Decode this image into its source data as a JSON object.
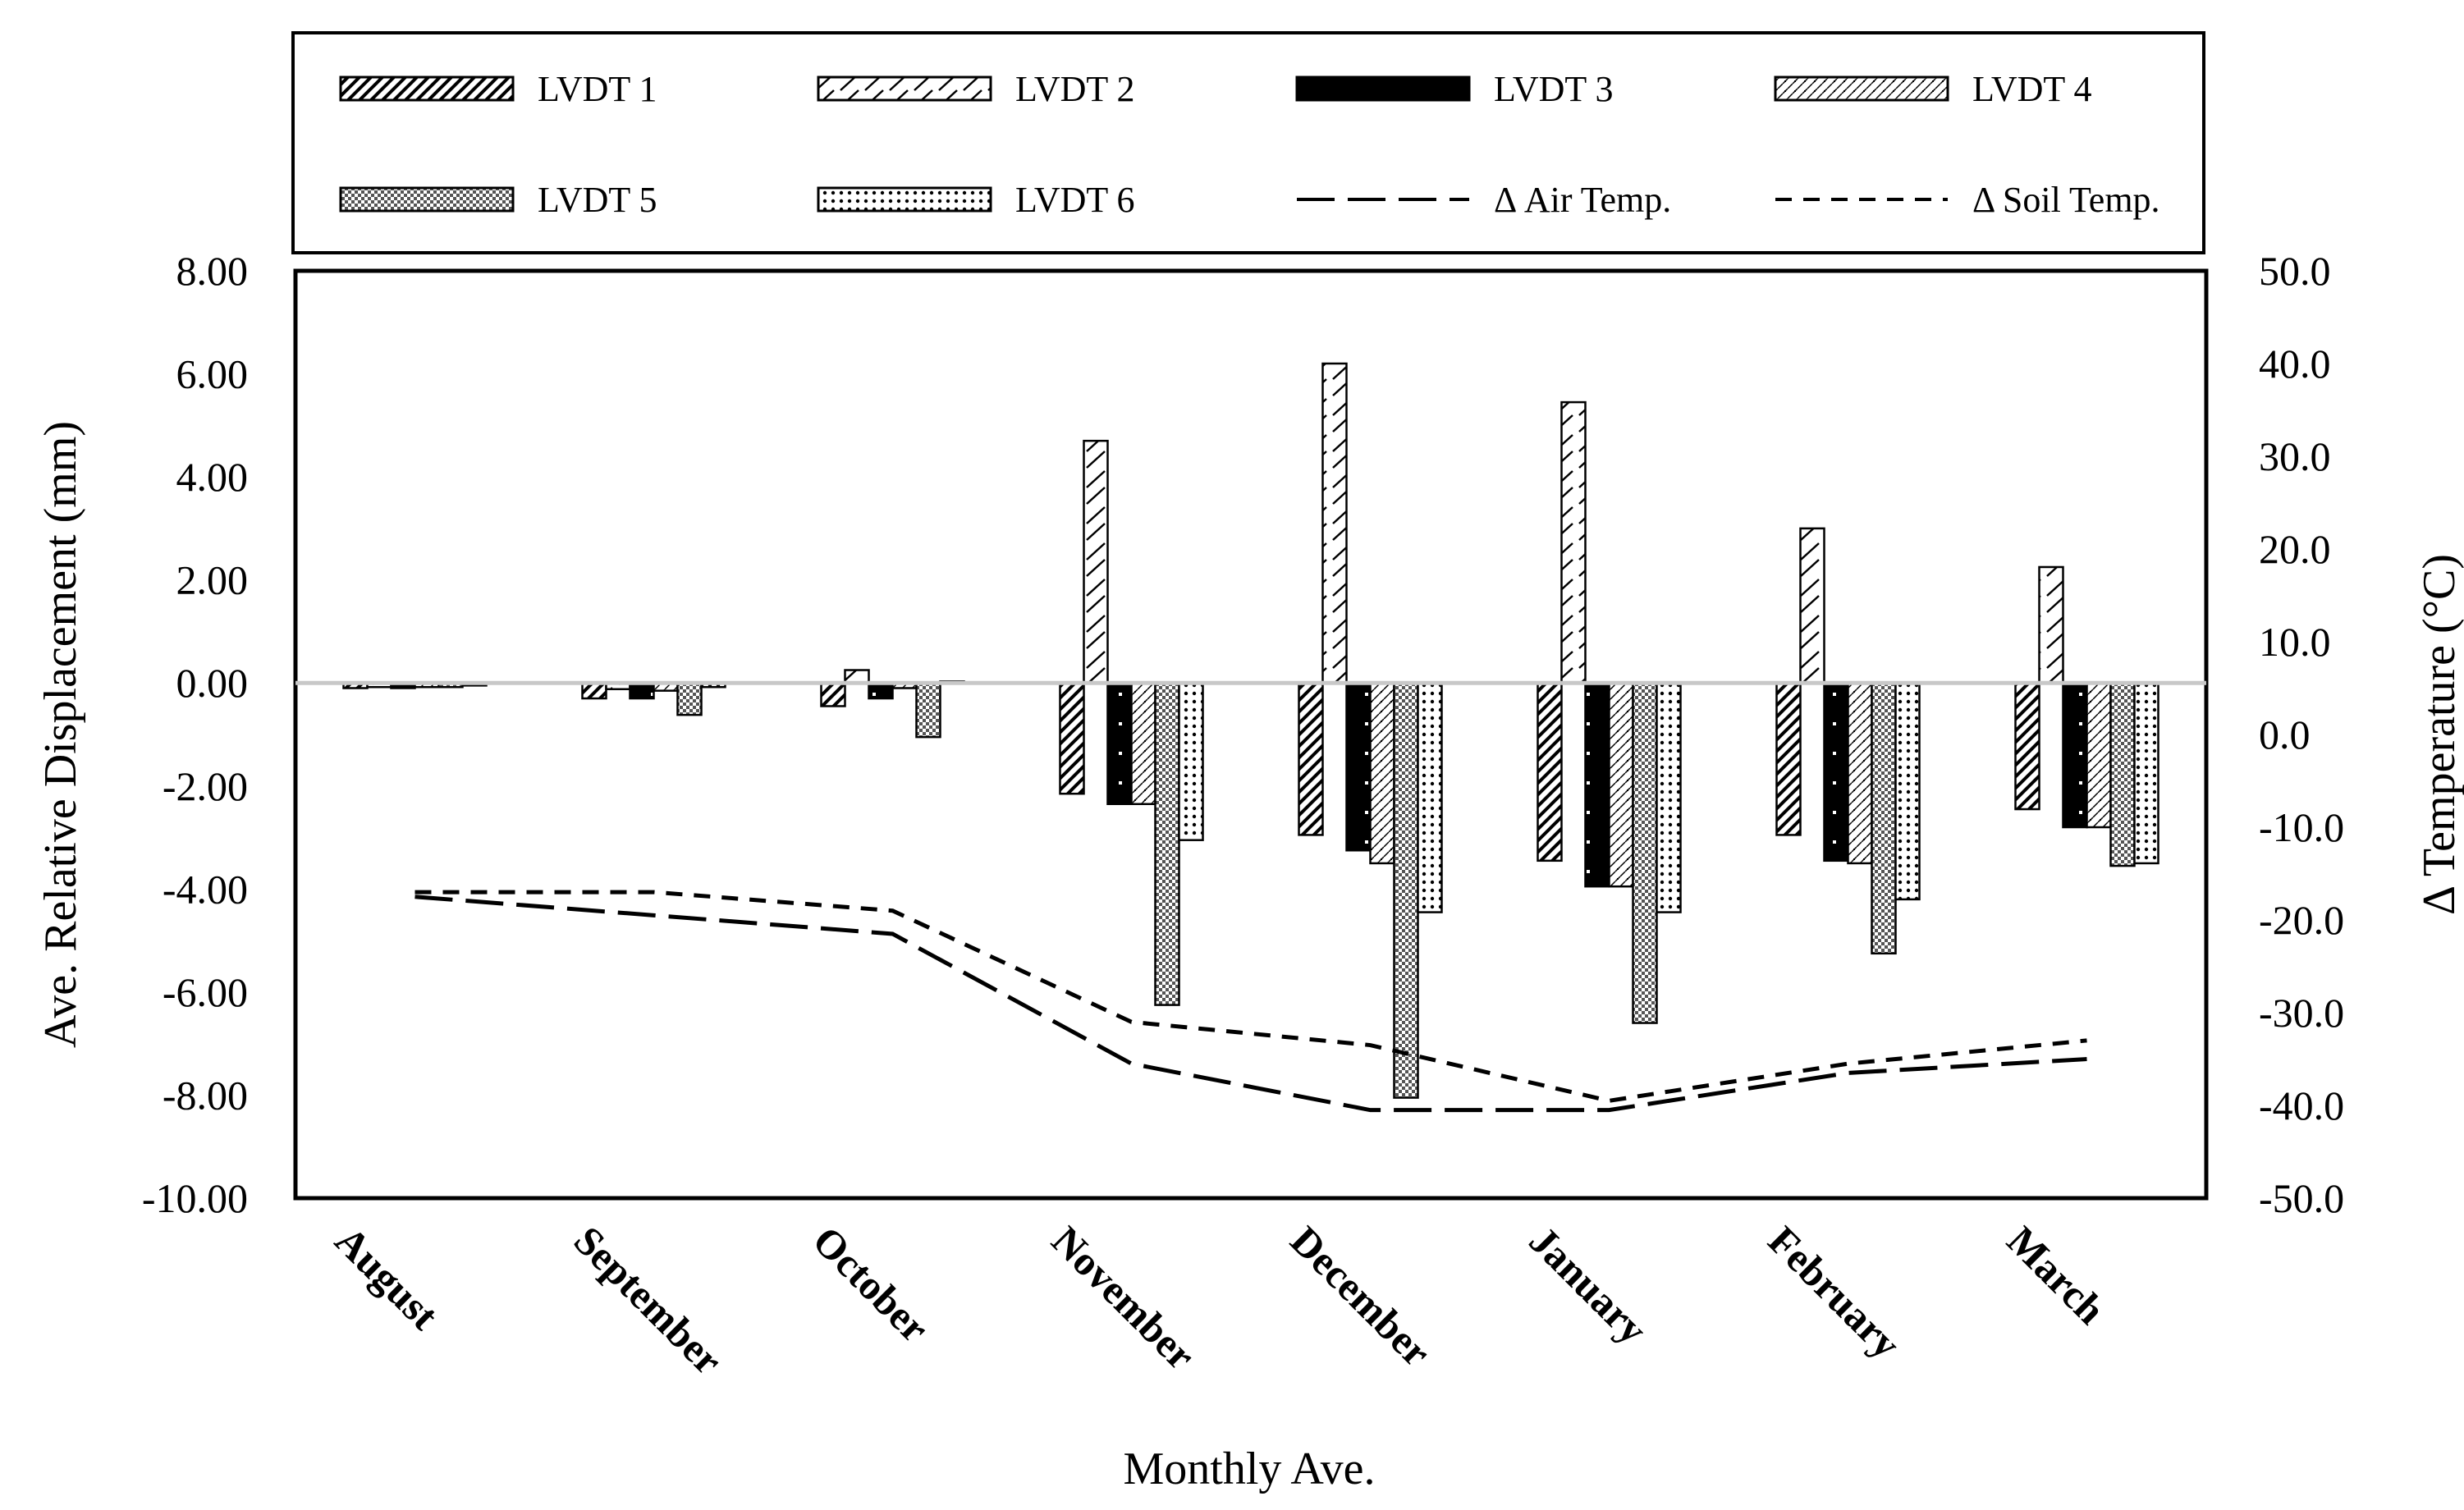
{
  "chart_data": {
    "type": "bar",
    "xlabel": "Monthly Ave.",
    "ylabel": "Ave. Relative Displacement (mm)",
    "y2label": "Δ Temperature (°C)",
    "ylim": [
      -10,
      8
    ],
    "y_ticks": [
      "8.00",
      "6.00",
      "4.00",
      "2.00",
      "0.00",
      "-2.00",
      "-4.00",
      "-6.00",
      "-8.00",
      "-10.00"
    ],
    "y2lim": [
      -50,
      50
    ],
    "y2_ticks": [
      "50.0",
      "40.0",
      "30.0",
      "20.0",
      "10.0",
      "0.0",
      "-10.0",
      "-20.0",
      "-30.0",
      "-40.0",
      "-50.0"
    ],
    "categories": [
      "August",
      "September",
      "October",
      "November",
      "December",
      "January",
      "February",
      "March"
    ],
    "series": [
      {
        "name": "LVDT 1",
        "pattern": "diag",
        "values": [
          -0.1,
          -0.3,
          -0.45,
          -2.15,
          -2.95,
          -3.45,
          -2.95,
          -2.45
        ]
      },
      {
        "name": "LVDT 2",
        "pattern": "zigzag",
        "values": [
          -0.08,
          -0.12,
          0.25,
          4.7,
          6.2,
          5.45,
          3.0,
          2.25
        ]
      },
      {
        "name": "LVDT 3",
        "pattern": "black",
        "values": [
          -0.1,
          -0.3,
          -0.3,
          -2.35,
          -3.25,
          -3.95,
          -3.45,
          -2.8
        ]
      },
      {
        "name": "LVDT 4",
        "pattern": "fine",
        "values": [
          -0.08,
          -0.15,
          -0.1,
          -2.35,
          -3.5,
          -3.95,
          -3.5,
          -2.8
        ]
      },
      {
        "name": "LVDT 5",
        "pattern": "check",
        "values": [
          -0.08,
          -0.62,
          -1.05,
          -6.25,
          -8.05,
          -6.6,
          -5.25,
          -3.55
        ]
      },
      {
        "name": "LVDT 6",
        "pattern": "dots",
        "values": [
          -0.05,
          -0.08,
          0.03,
          -3.05,
          -4.45,
          -4.45,
          -4.2,
          -3.5
        ]
      }
    ],
    "lines": [
      {
        "name": "Δ Air Temp.",
        "axis": "right",
        "dash": "long",
        "values": [
          -17.5,
          -19.5,
          -21.5,
          -35.5,
          -40.5,
          -40.5,
          -36.5,
          -35
        ]
      },
      {
        "name": "Δ Soil Temp.",
        "axis": "right",
        "dash": "short",
        "values": [
          -17,
          -17,
          -19,
          -31,
          -33.5,
          -39.5,
          -35.5,
          -33
        ]
      }
    ],
    "legend_position": "top",
    "grid": false
  }
}
